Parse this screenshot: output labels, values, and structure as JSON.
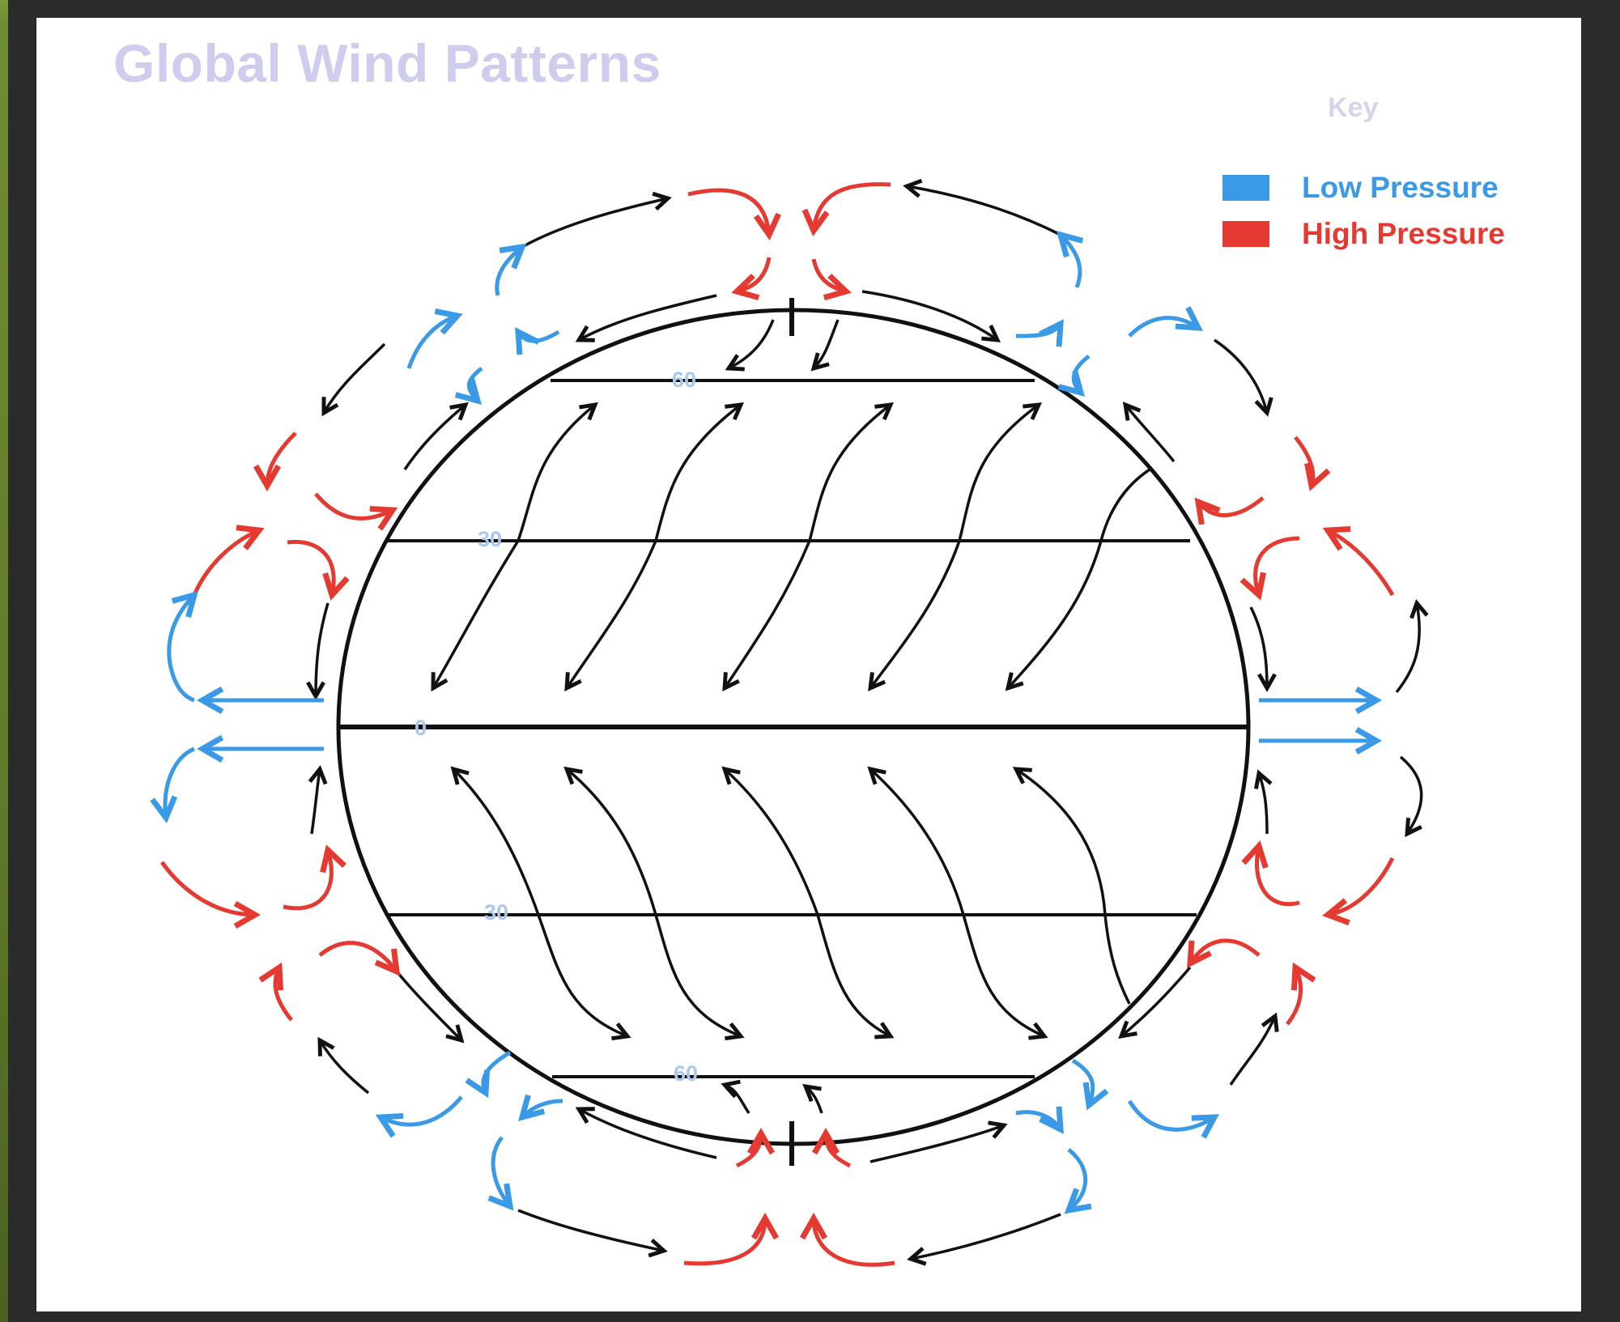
{
  "title": "Global Wind Patterns",
  "key": {
    "title": "Key",
    "items": [
      {
        "label": "Low Pressure",
        "color": "#3a9ae6"
      },
      {
        "label": "High Pressure",
        "color": "#e53a32"
      }
    ]
  },
  "latitude_labels": {
    "north_60": "60",
    "north_30": "30",
    "equator": "0",
    "south_30": "30",
    "south_60": "60"
  },
  "colors": {
    "low_pressure": "#3a9ae6",
    "high_pressure": "#e53a32",
    "wind": "#111111"
  }
}
